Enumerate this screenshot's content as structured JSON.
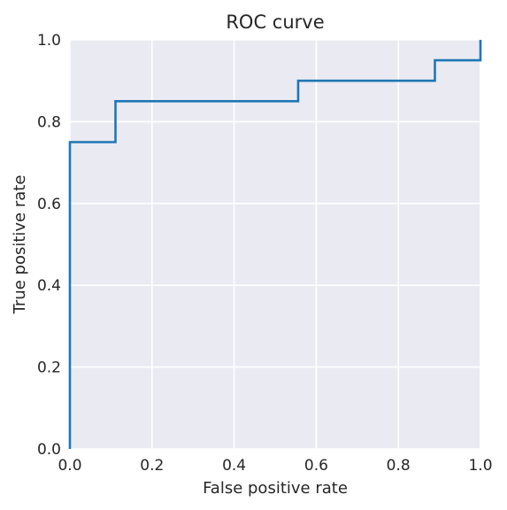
{
  "chart_data": {
    "type": "line",
    "step": "post",
    "title": "ROC curve",
    "xlabel": "False positive rate",
    "ylabel": "True positive rate",
    "xlim": [
      0.0,
      1.0
    ],
    "ylim": [
      0.0,
      1.0
    ],
    "xticks": [
      0.0,
      0.2,
      0.4,
      0.6,
      0.8,
      1.0
    ],
    "yticks": [
      0.0,
      0.2,
      0.4,
      0.6,
      0.8,
      1.0
    ],
    "xtick_labels": [
      "0.0",
      "0.2",
      "0.4",
      "0.6",
      "0.8",
      "1.0"
    ],
    "ytick_labels": [
      "0.0",
      "0.2",
      "0.4",
      "0.6",
      "0.8",
      "1.0"
    ],
    "grid": true,
    "legend": false,
    "series": [
      {
        "x": [
          0.0,
          0.0,
          0.111,
          0.111,
          0.556,
          0.556,
          0.889,
          0.889,
          1.0,
          1.0
        ],
        "y": [
          0.0,
          0.75,
          0.75,
          0.85,
          0.85,
          0.9,
          0.9,
          0.95,
          0.95,
          1.0
        ],
        "color": "#1f77b4"
      }
    ]
  },
  "colors": {
    "plot_background": "#eaeaf2",
    "grid": "#ffffff",
    "text": "#262626",
    "line": "#1f77b4"
  }
}
